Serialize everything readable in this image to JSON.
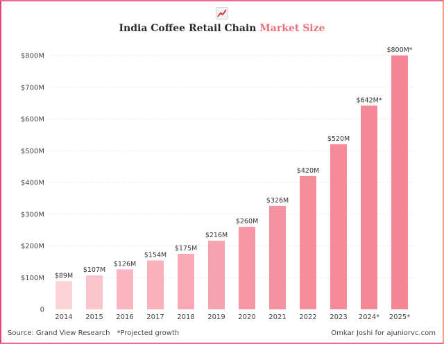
{
  "title": {
    "icon": "chart-increasing-icon",
    "main": "India Coffee Retail Chain",
    "accent": "Market Size",
    "accent_color": "#ef6f7f"
  },
  "footer": {
    "source": "Source: Grand View Research",
    "note": "*Projected growth",
    "credit": "Omkar Joshi for ajuniorvc.com"
  },
  "chart_data": {
    "type": "bar",
    "categories": [
      "2014",
      "2015",
      "2016",
      "2017",
      "2018",
      "2019",
      "2020",
      "2021",
      "2022",
      "2023",
      "2024*",
      "2025*"
    ],
    "values": [
      89,
      107,
      126,
      154,
      175,
      216,
      260,
      326,
      420,
      520,
      642,
      800
    ],
    "data_labels": [
      "$89M",
      "$107M",
      "$126M",
      "$154M",
      "$175M",
      "$216M",
      "$260M",
      "$326M",
      "$420M",
      "$520M",
      "$642M*",
      "$800M*"
    ],
    "yticks": [
      0,
      100,
      200,
      300,
      400,
      500,
      600,
      700,
      800
    ],
    "ytick_labels": [
      "0",
      "$100M",
      "$200M",
      "$300M",
      "$400M",
      "$500M",
      "$600M",
      "$700M",
      "$800M"
    ],
    "ylim": [
      0,
      800
    ],
    "grid": true,
    "bar_colors": [
      "#fdd3da",
      "#fbc4cd",
      "#fab6c0",
      "#f9b0bb",
      "#f8a9b5",
      "#f7a3af",
      "#f797a4",
      "#f6929f",
      "#f58d9a",
      "#f58b98",
      "#f58895",
      "#f58693"
    ],
    "xlabel": "",
    "ylabel": ""
  }
}
